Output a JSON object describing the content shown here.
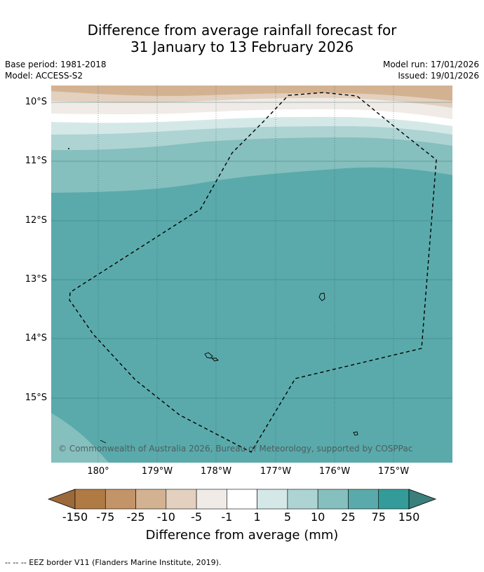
{
  "title_line1": "Difference from average rainfall forecast for",
  "title_line2": "31 January to 13 February 2026",
  "meta": {
    "base_period": "Base period: 1981-2018",
    "model": "Model: ACCESS-S2",
    "model_run": "Model run: 17/01/2026",
    "issued": "Issued: 19/01/2026"
  },
  "map": {
    "lat_labels": [
      "10°S",
      "11°S",
      "12°S",
      "13°S",
      "14°S",
      "15°S"
    ],
    "lon_labels": [
      "180°",
      "179°W",
      "178°W",
      "177°W",
      "176°W",
      "175°W"
    ],
    "copyright": "© Commonwealth of Australia 2026, Bureau of Meteorology, supported by COSPPac",
    "eez_layer": "EEZ border",
    "background_category": "25 to 75"
  },
  "colorbar": {
    "ticks": [
      "-150",
      "-75",
      "-25",
      "-10",
      "-5",
      "-1",
      "1",
      "5",
      "10",
      "25",
      "75",
      "150"
    ],
    "colors": [
      "#9c6a3a",
      "#b07a44",
      "#c29468",
      "#d3b292",
      "#e3d0bf",
      "#f0ebe6",
      "#ffffff",
      "#d4e8e7",
      "#aed3d3",
      "#85bfbe",
      "#5aaaab",
      "#339b99",
      "#3a7f7c"
    ],
    "title": "Difference from average (mm)"
  },
  "footer": "--  --  -- EEZ border V11 (Flanders Marine Institute, 2019)."
}
